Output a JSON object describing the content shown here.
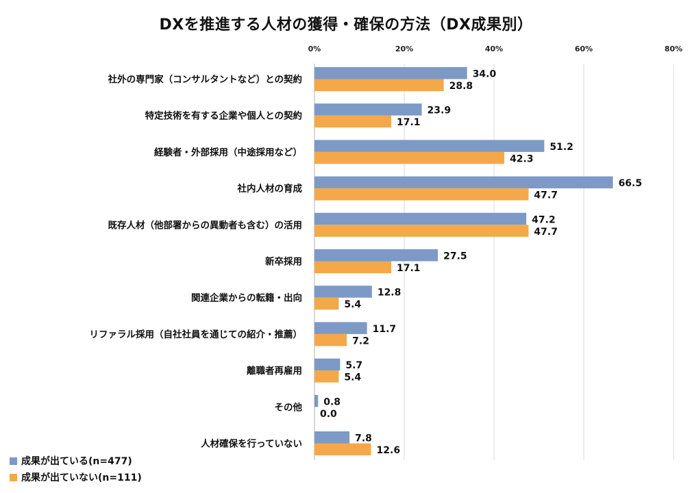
{
  "chart_data": {
    "type": "bar",
    "orientation": "horizontal",
    "title": "DXを推進する人材の獲得・確保の方法（DX成果別）",
    "xlim": [
      0,
      80
    ],
    "xticks": [
      "0%",
      "20%",
      "40%",
      "60%",
      "80%"
    ],
    "grid": true,
    "legend_position": "bottom-left",
    "categories": [
      "社外の専門家（コンサルタントなど）との契約",
      "特定技術を有する企業や個人との契約",
      "経験者・外部採用（中途採用など）",
      "社内人材の育成",
      "既存人材（他部署からの異動者も含む）の活用",
      "新卒採用",
      "関連企業からの転籍・出向",
      "リファラル採用（自社社員を通じての紹介・推薦）",
      "離職者再雇用",
      "その他",
      "人材確保を行っていない"
    ],
    "series": [
      {
        "name": "成果が出ている(n=477)",
        "color": "#7d99c6",
        "values": [
          34.0,
          23.9,
          51.2,
          66.5,
          47.2,
          27.5,
          12.8,
          11.7,
          5.7,
          0.8,
          7.8
        ]
      },
      {
        "name": "成果が出ていない(n=111)",
        "color": "#f4a84a",
        "values": [
          28.8,
          17.1,
          42.3,
          47.7,
          47.7,
          17.1,
          5.4,
          7.2,
          5.4,
          0.0,
          12.6
        ]
      }
    ]
  }
}
